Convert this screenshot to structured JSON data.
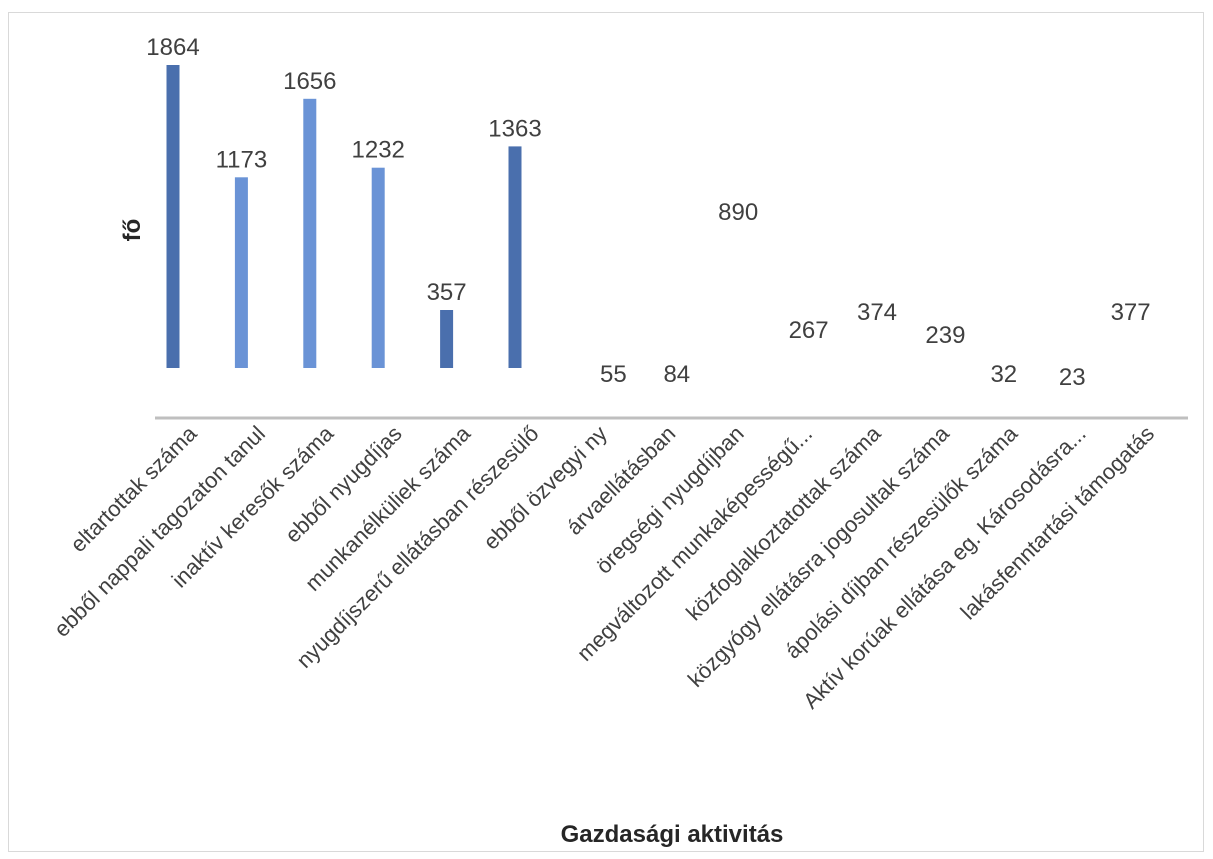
{
  "chart_data": {
    "type": "bar",
    "title": "",
    "xlabel": "Gazdasági aktivitás",
    "ylabel": "fő",
    "categories": [
      "eltartottak száma",
      "ebből nappali tagozaton tanul",
      "inaktív keresők száma",
      "ebből nyugdíjas",
      "munkanélküliek száma",
      "nyugdíjszerű ellátásban részesülő",
      "ebből özvegyi ny",
      "árvaellátásban",
      "öregségi nyugdíjban",
      "megváltozott munkaképességű...",
      "közfoglalkoztatottak száma",
      "közgyógy ellátásra jogosultak száma",
      "ápolási díjban részesülők száma",
      "Aktív korúak ellátása eg. Károsodásra...",
      "lakásfenntartási támogatás"
    ],
    "values": [
      1864,
      1173,
      1656,
      1232,
      357,
      1363,
      55,
      84,
      890,
      267,
      374,
      239,
      32,
      23,
      377
    ],
    "labels": [
      "1864",
      "1173",
      "1656",
      "1232",
      "357",
      "1363",
      "55",
      "84",
      "890",
      "267",
      "374",
      "239",
      "32",
      "23",
      "377"
    ],
    "bar_colors": [
      "#4a6fad",
      "#6a93d6",
      "#6a93d6",
      "#6a93d6",
      "#4a6fad",
      "#4a6fad",
      "#ffffff",
      "#ffffff",
      "#ffffff",
      "#ffffff",
      "#ffffff",
      "#ffffff",
      "#ffffff",
      "#ffffff",
      "#ffffff"
    ],
    "ylim": [
      0,
      1864
    ],
    "grid": false,
    "legend": "none"
  }
}
